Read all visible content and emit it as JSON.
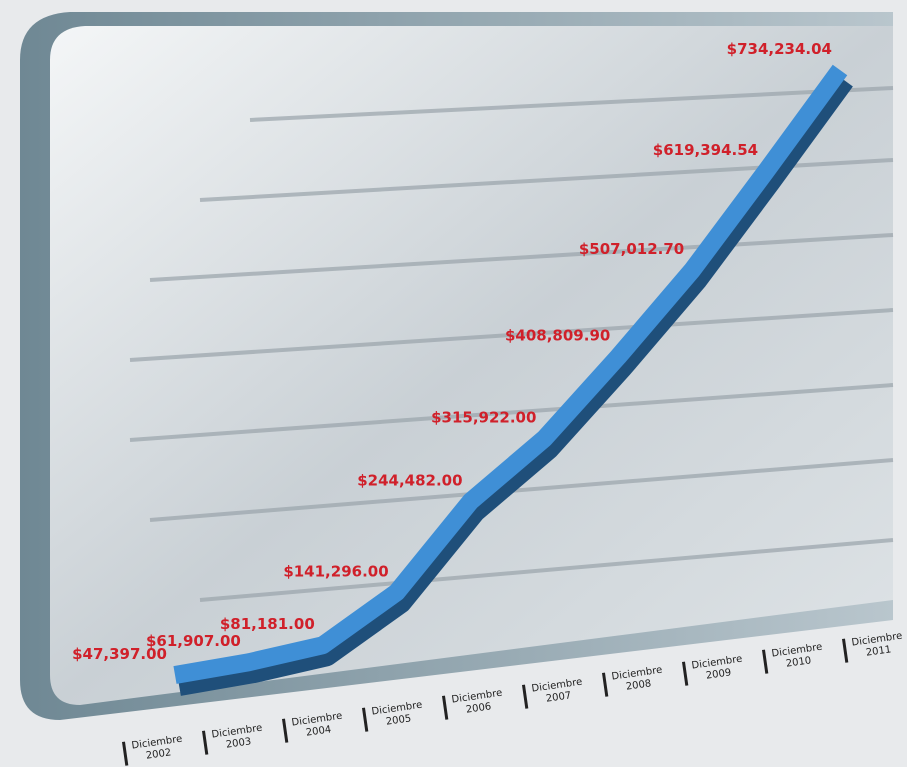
{
  "chart_data": {
    "type": "line",
    "categories": [
      "Diciembre 2002",
      "Diciembre 2003",
      "Diciembre 2004",
      "Diciembre 2005",
      "Diciembre 2006",
      "Diciembre 2007",
      "Diciembre 2008",
      "Diciembre 2009",
      "Diciembre 2010",
      "Diciembre 2011"
    ],
    "values": [
      47397.0,
      61907.0,
      81181.0,
      141296.0,
      244482.0,
      315922.0,
      408809.9,
      507012.7,
      619394.54,
      734234.04
    ],
    "value_labels": [
      "$47,397.00",
      "$61,907.00",
      "$81,181.00",
      "$141,296.00",
      "$244,482.00",
      "$315,922.00",
      "$408,809.90",
      "$507,012.70",
      "$619,394.54",
      "$734,234.04"
    ],
    "color": "#3f8fd6",
    "label_color": "#d0202a"
  }
}
